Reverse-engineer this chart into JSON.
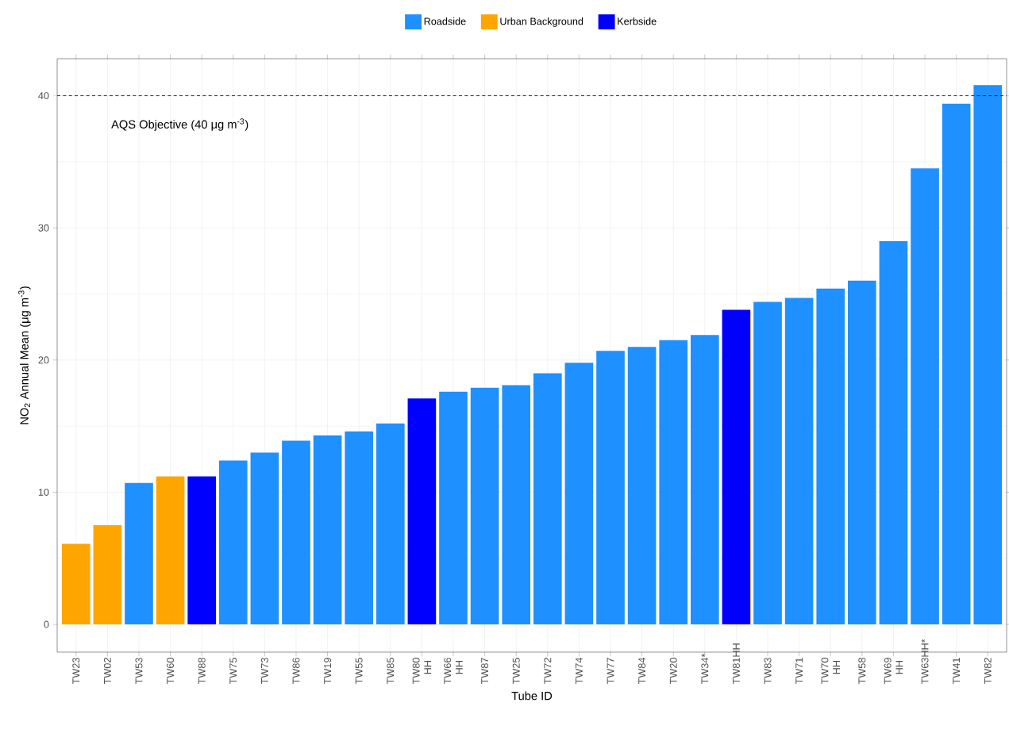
{
  "chart_data": {
    "type": "bar",
    "xlabel": "Tube ID",
    "ylabel": "NO$_{2}$ Annual Mean (μg m$^{-3}$)",
    "categories": [
      "TW23",
      "TW02",
      "TW53",
      "TW60",
      "TW88",
      "TW75",
      "TW73",
      "TW86",
      "TW19",
      "TW55",
      "TW85",
      "TW80 HH",
      "TW66 HH",
      "TW87",
      "TW25",
      "TW72",
      "TW74",
      "TW77",
      "TW84",
      "TW20",
      "TW34*",
      "TW81HH",
      "TW83",
      "TW71",
      "TW70 HH",
      "TW58",
      "TW69 HH",
      "TW63HH*",
      "TW41",
      "TW82"
    ],
    "series": [
      {
        "name": "Roadside",
        "color": "#1e90ff",
        "values": [
          null,
          null,
          10.7,
          null,
          null,
          12.4,
          13.0,
          13.9,
          14.3,
          14.6,
          15.2,
          null,
          17.6,
          17.9,
          18.1,
          19.0,
          19.8,
          20.7,
          21.0,
          21.5,
          21.9,
          null,
          24.4,
          24.7,
          25.4,
          26.0,
          29.0,
          34.5,
          39.4,
          40.8
        ]
      },
      {
        "name": "Urban Background",
        "color": "#ffa500",
        "values": [
          6.1,
          7.5,
          null,
          11.2,
          null,
          null,
          null,
          null,
          null,
          null,
          null,
          null,
          null,
          null,
          null,
          null,
          null,
          null,
          null,
          null,
          null,
          null,
          null,
          null,
          null,
          null,
          null,
          null,
          null,
          null
        ]
      },
      {
        "name": "Kerbside",
        "color": "#0000ff",
        "values": [
          null,
          null,
          null,
          null,
          11.2,
          null,
          null,
          null,
          null,
          null,
          null,
          17.1,
          null,
          null,
          null,
          null,
          null,
          null,
          null,
          null,
          null,
          23.8,
          null,
          null,
          null,
          null,
          null,
          null,
          null,
          null
        ]
      }
    ],
    "ylim": [
      -2.1,
      42.8
    ],
    "yticks": [
      0,
      10,
      20,
      30,
      40
    ],
    "grid": true,
    "legend": "top",
    "ref_lines": [
      {
        "axis": "y",
        "value": 40,
        "label": "AQS Objective (40 μg m$^{-3}$)",
        "color": "#000000",
        "line_style": "dashed"
      }
    ]
  }
}
